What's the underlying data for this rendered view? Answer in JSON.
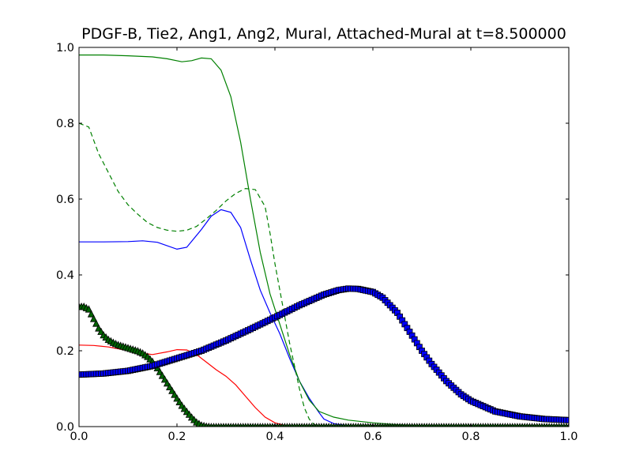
{
  "chart_data": {
    "type": "line",
    "title": "PDGF-B, Tie2, Ang1, Ang2, Mural, Attached-Mural at t=8.500000",
    "xlabel": "",
    "ylabel": "",
    "xlim": [
      0.0,
      1.0
    ],
    "ylim": [
      0.0,
      1.0
    ],
    "grid": false,
    "legend": "none",
    "xticks": [
      0.0,
      0.2,
      0.4,
      0.6,
      0.8,
      1.0
    ],
    "yticks": [
      0.0,
      0.2,
      0.4,
      0.6,
      0.8,
      1.0
    ],
    "xtick_labels": [
      "0.0",
      "0.2",
      "0.4",
      "0.6",
      "0.8",
      "1.0"
    ],
    "ytick_labels": [
      "0.0",
      "0.2",
      "0.4",
      "0.6",
      "0.8",
      "1.0"
    ],
    "series": [
      {
        "color": "#0000ff",
        "style": "solid",
        "points": [
          [
            0.0,
            0.487
          ],
          [
            0.05,
            0.487
          ],
          [
            0.1,
            0.488
          ],
          [
            0.13,
            0.49
          ],
          [
            0.16,
            0.486
          ],
          [
            0.2,
            0.468
          ],
          [
            0.22,
            0.473
          ],
          [
            0.25,
            0.52
          ],
          [
            0.27,
            0.555
          ],
          [
            0.29,
            0.572
          ],
          [
            0.31,
            0.565
          ],
          [
            0.33,
            0.525
          ],
          [
            0.35,
            0.44
          ],
          [
            0.37,
            0.36
          ],
          [
            0.39,
            0.3
          ],
          [
            0.41,
            0.245
          ],
          [
            0.43,
            0.18
          ],
          [
            0.45,
            0.12
          ],
          [
            0.47,
            0.075
          ],
          [
            0.49,
            0.037
          ],
          [
            0.5,
            0.02
          ],
          [
            0.52,
            0.008
          ],
          [
            0.55,
            0.002
          ],
          [
            0.6,
            0.0
          ],
          [
            1.0,
            0.0
          ]
        ]
      },
      {
        "color": "#008000",
        "style": "solid",
        "points": [
          [
            0.0,
            0.98
          ],
          [
            0.05,
            0.98
          ],
          [
            0.1,
            0.978
          ],
          [
            0.15,
            0.975
          ],
          [
            0.18,
            0.97
          ],
          [
            0.21,
            0.962
          ],
          [
            0.23,
            0.965
          ],
          [
            0.25,
            0.972
          ],
          [
            0.27,
            0.97
          ],
          [
            0.29,
            0.94
          ],
          [
            0.31,
            0.87
          ],
          [
            0.33,
            0.75
          ],
          [
            0.35,
            0.6
          ],
          [
            0.37,
            0.46
          ],
          [
            0.39,
            0.35
          ],
          [
            0.41,
            0.27
          ],
          [
            0.43,
            0.19
          ],
          [
            0.45,
            0.12
          ],
          [
            0.47,
            0.07
          ],
          [
            0.49,
            0.04
          ],
          [
            0.52,
            0.025
          ],
          [
            0.55,
            0.017
          ],
          [
            0.6,
            0.01
          ],
          [
            0.65,
            0.005
          ],
          [
            0.7,
            0.002
          ],
          [
            0.8,
            0.001
          ],
          [
            1.0,
            0.0
          ]
        ]
      },
      {
        "color": "#008000",
        "style": "dashed",
        "points": [
          [
            0.0,
            0.8
          ],
          [
            0.02,
            0.79
          ],
          [
            0.04,
            0.72
          ],
          [
            0.06,
            0.67
          ],
          [
            0.08,
            0.62
          ],
          [
            0.1,
            0.585
          ],
          [
            0.12,
            0.56
          ],
          [
            0.14,
            0.538
          ],
          [
            0.16,
            0.525
          ],
          [
            0.18,
            0.518
          ],
          [
            0.2,
            0.515
          ],
          [
            0.22,
            0.518
          ],
          [
            0.24,
            0.528
          ],
          [
            0.26,
            0.548
          ],
          [
            0.28,
            0.57
          ],
          [
            0.3,
            0.595
          ],
          [
            0.32,
            0.615
          ],
          [
            0.34,
            0.628
          ],
          [
            0.36,
            0.625
          ],
          [
            0.38,
            0.58
          ],
          [
            0.39,
            0.51
          ],
          [
            0.4,
            0.43
          ],
          [
            0.41,
            0.36
          ],
          [
            0.42,
            0.29
          ],
          [
            0.43,
            0.22
          ],
          [
            0.44,
            0.16
          ],
          [
            0.45,
            0.1
          ],
          [
            0.46,
            0.05
          ],
          [
            0.47,
            0.02
          ],
          [
            0.48,
            0.005
          ],
          [
            0.5,
            0.0
          ],
          [
            1.0,
            0.0
          ]
        ]
      },
      {
        "color": "#ff0000",
        "style": "solid",
        "points": [
          [
            0.0,
            0.215
          ],
          [
            0.03,
            0.214
          ],
          [
            0.06,
            0.21
          ],
          [
            0.09,
            0.203
          ],
          [
            0.12,
            0.195
          ],
          [
            0.15,
            0.19
          ],
          [
            0.18,
            0.197
          ],
          [
            0.2,
            0.203
          ],
          [
            0.22,
            0.202
          ],
          [
            0.24,
            0.19
          ],
          [
            0.26,
            0.17
          ],
          [
            0.28,
            0.15
          ],
          [
            0.3,
            0.133
          ],
          [
            0.32,
            0.11
          ],
          [
            0.34,
            0.08
          ],
          [
            0.36,
            0.05
          ],
          [
            0.38,
            0.025
          ],
          [
            0.4,
            0.01
          ],
          [
            0.42,
            0.003
          ],
          [
            0.45,
            0.0
          ],
          [
            1.0,
            0.0
          ]
        ]
      },
      {
        "color": "#006400",
        "style": "triangles",
        "points": [
          [
            0.0,
            0.317
          ],
          [
            0.01,
            0.317
          ],
          [
            0.02,
            0.31
          ],
          [
            0.03,
            0.285
          ],
          [
            0.04,
            0.26
          ],
          [
            0.05,
            0.242
          ],
          [
            0.06,
            0.23
          ],
          [
            0.07,
            0.222
          ],
          [
            0.08,
            0.216
          ],
          [
            0.09,
            0.212
          ],
          [
            0.1,
            0.208
          ],
          [
            0.11,
            0.204
          ],
          [
            0.12,
            0.2
          ],
          [
            0.13,
            0.194
          ],
          [
            0.14,
            0.185
          ],
          [
            0.15,
            0.172
          ],
          [
            0.16,
            0.155
          ],
          [
            0.17,
            0.135
          ],
          [
            0.18,
            0.115
          ],
          [
            0.19,
            0.095
          ],
          [
            0.2,
            0.075
          ],
          [
            0.21,
            0.056
          ],
          [
            0.22,
            0.04
          ],
          [
            0.23,
            0.025
          ],
          [
            0.24,
            0.012
          ],
          [
            0.25,
            0.004
          ],
          [
            0.26,
            0.001
          ],
          [
            0.27,
            0.0
          ],
          [
            1.0,
            0.0
          ]
        ]
      },
      {
        "color": "#0000ff",
        "style": "squares",
        "points": [
          [
            0.0,
            0.137
          ],
          [
            0.05,
            0.14
          ],
          [
            0.1,
            0.147
          ],
          [
            0.15,
            0.16
          ],
          [
            0.2,
            0.18
          ],
          [
            0.25,
            0.2
          ],
          [
            0.3,
            0.227
          ],
          [
            0.35,
            0.257
          ],
          [
            0.4,
            0.288
          ],
          [
            0.45,
            0.32
          ],
          [
            0.5,
            0.348
          ],
          [
            0.53,
            0.36
          ],
          [
            0.55,
            0.364
          ],
          [
            0.57,
            0.363
          ],
          [
            0.6,
            0.355
          ],
          [
            0.62,
            0.34
          ],
          [
            0.65,
            0.3
          ],
          [
            0.68,
            0.24
          ],
          [
            0.7,
            0.2
          ],
          [
            0.72,
            0.165
          ],
          [
            0.75,
            0.12
          ],
          [
            0.78,
            0.085
          ],
          [
            0.8,
            0.068
          ],
          [
            0.85,
            0.04
          ],
          [
            0.9,
            0.027
          ],
          [
            0.95,
            0.02
          ],
          [
            1.0,
            0.017
          ]
        ]
      }
    ]
  }
}
